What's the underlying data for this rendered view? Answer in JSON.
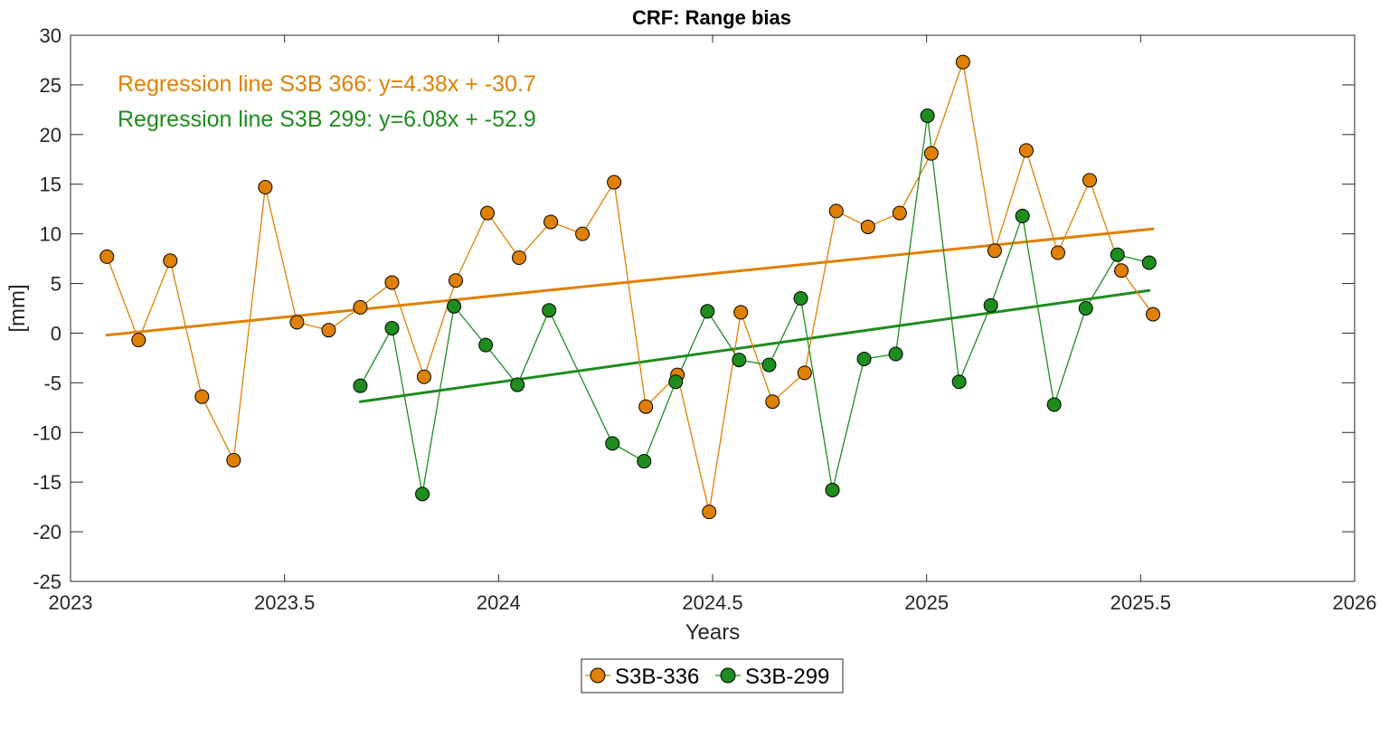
{
  "chart_data": {
    "type": "line",
    "title": "CRF: Range bias",
    "xlabel": "Years",
    "ylabel": "[mm]",
    "xlim": [
      2023,
      2026
    ],
    "ylim": [
      -25,
      30
    ],
    "xticks": [
      2023,
      2023.5,
      2024,
      2024.5,
      2025,
      2025.5,
      2026
    ],
    "xtick_labels": [
      "2023",
      "2023.5",
      "2024",
      "2024.5",
      "2025",
      "2025.5",
      "2026"
    ],
    "yticks": [
      -25,
      -20,
      -15,
      -10,
      -5,
      0,
      5,
      10,
      15,
      20,
      25,
      30
    ],
    "ytick_labels": [
      "-25",
      "-20",
      "-15",
      "-10",
      "-5",
      "0",
      "5",
      "10",
      "15",
      "20",
      "25",
      "30"
    ],
    "grid": false,
    "legend_position": "bottom-center-outside",
    "series": [
      {
        "name": "S3B-336",
        "color": "#E08000",
        "marker": "circle",
        "x": [
          2023.085,
          2023.159,
          2023.233,
          2023.307,
          2023.381,
          2023.455,
          2023.529,
          2023.603,
          2023.677,
          2023.751,
          2023.826,
          2023.9,
          2023.974,
          2024.048,
          2024.122,
          2024.196,
          2024.27,
          2024.344,
          2024.418,
          2024.492,
          2024.566,
          2024.64,
          2024.715,
          2024.789,
          2024.863,
          2024.937,
          2025.011,
          2025.085,
          2025.159,
          2025.233,
          2025.307,
          2025.381,
          2025.455,
          2025.529
        ],
        "y": [
          7.7,
          -0.7,
          7.3,
          -6.4,
          -12.8,
          14.7,
          1.1,
          0.3,
          2.6,
          5.1,
          -4.4,
          5.3,
          12.1,
          7.6,
          11.2,
          10.0,
          15.2,
          -7.4,
          -4.2,
          -18.0,
          2.1,
          -6.9,
          -4.0,
          12.3,
          10.7,
          12.1,
          18.1,
          27.3,
          8.3,
          18.4,
          8.1,
          15.4,
          6.3,
          1.9
        ]
      },
      {
        "name": "S3B-299",
        "color": "#1E8C1E",
        "marker": "circle",
        "x": [
          2023.677,
          2023.751,
          2023.822,
          2023.896,
          2023.97,
          2024.044,
          2024.118,
          2024.266,
          2024.34,
          2024.414,
          2024.488,
          2024.562,
          2024.632,
          2024.706,
          2024.78,
          2024.854,
          2024.928,
          2025.002,
          2025.076,
          2025.15,
          2025.224,
          2025.298,
          2025.372,
          2025.446,
          2025.52
        ],
        "y": [
          -5.3,
          0.5,
          -16.2,
          2.7,
          -1.2,
          -5.2,
          2.3,
          -11.1,
          -12.9,
          -4.9,
          2.2,
          -2.7,
          -3.2,
          3.5,
          -15.8,
          -2.6,
          -2.1,
          21.9,
          -4.9,
          2.8,
          11.8,
          -7.2,
          2.5,
          7.9,
          7.1
        ]
      }
    ],
    "regression_lines": [
      {
        "name": "Regression line S3B 366",
        "color": "#E08000",
        "x": [
          2023.085,
          2025.529
        ],
        "y": [
          -0.2,
          10.5
        ]
      },
      {
        "name": "Regression line S3B 299",
        "color": "#1E8C1E",
        "x": [
          2023.677,
          2025.52
        ],
        "y": [
          -6.9,
          4.3
        ]
      }
    ],
    "annotations": [
      {
        "text": "Regression line S3B 366: y=4.38x + -30.7",
        "color": "#E08000"
      },
      {
        "text": "Regression line S3B 299: y=6.08x + -52.9",
        "color": "#1E8C1E"
      }
    ]
  }
}
